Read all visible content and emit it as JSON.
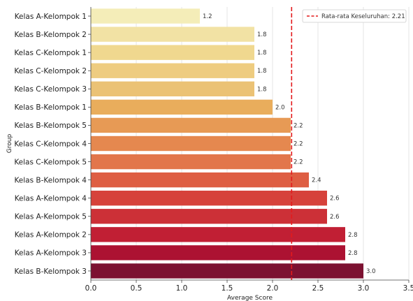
{
  "chart_data": {
    "type": "bar",
    "orientation": "horizontal",
    "xlabel": "Average Score",
    "ylabel": "Group",
    "xlim": [
      0,
      3.5
    ],
    "xticks": [
      "0.0",
      "0.5",
      "1.0",
      "1.5",
      "2.0",
      "2.5",
      "3.0",
      "3.5"
    ],
    "grid": "vertical",
    "categories": [
      "Kelas A-Kelompok 1",
      "Kelas B-Kelompok 2",
      "Kelas C-Kelompok 1",
      "Kelas C-Kelompok 2",
      "Kelas C-Kelompok 3",
      "Kelas B-Kelompok 1",
      "Kelas B-Kelompok 5",
      "Kelas C-Kelompok 4",
      "Kelas C-Kelompok 5",
      "Kelas B-Kelompok 4",
      "Kelas A-Kelompok 4",
      "Kelas A-Kelompok 5",
      "Kelas A-Kelompok 2",
      "Kelas A-Kelompok 3",
      "Kelas B-Kelompok 3"
    ],
    "values": [
      1.2,
      1.8,
      1.8,
      1.8,
      1.8,
      2.0,
      2.2,
      2.2,
      2.2,
      2.4,
      2.6,
      2.6,
      2.8,
      2.8,
      3.0
    ],
    "value_labels": [
      "1.2",
      "1.8",
      "1.8",
      "1.8",
      "1.8",
      "2.0",
      "2.2",
      "2.2",
      "2.2",
      "2.4",
      "2.6",
      "2.6",
      "2.8",
      "2.8",
      "3.0"
    ],
    "bar_colors": [
      "#f4edb8",
      "#f2e2a4",
      "#f0d88f",
      "#eecc80",
      "#ebc275",
      "#e9ad5c",
      "#e79a55",
      "#e5884f",
      "#e2764b",
      "#de5e43",
      "#d6423b",
      "#cc3037",
      "#c11f34",
      "#ac1232",
      "#7c1131"
    ],
    "reference_line": {
      "value": 2.21,
      "label": "Rata-rata Keseluruhan: 2.21",
      "color": "#e31a1c"
    },
    "legend_position": "top-right"
  }
}
